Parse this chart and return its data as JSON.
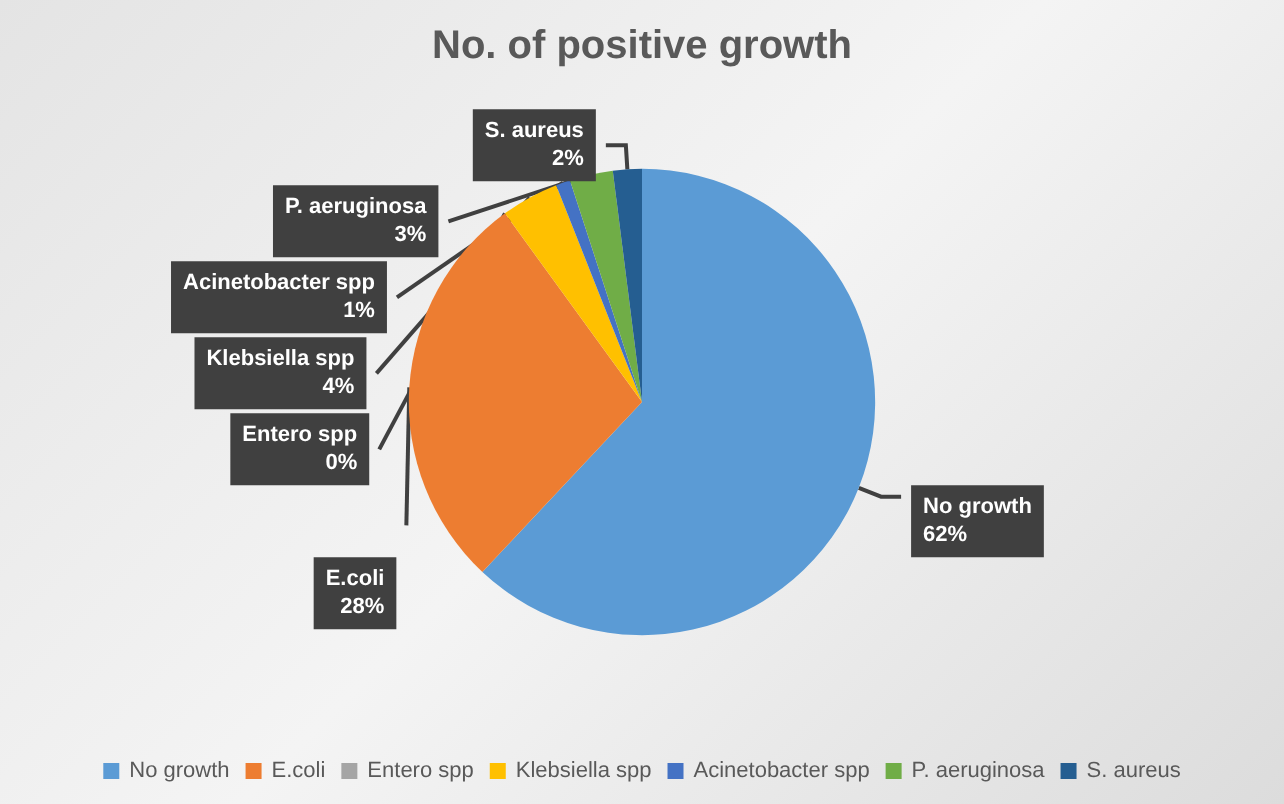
{
  "chart_data": {
    "type": "pie",
    "title": "No. of positive growth",
    "categories": [
      "No growth",
      "E.coli",
      "Entero spp",
      "Klebsiella spp",
      "Acinetobacter spp",
      "P. aeruginosa",
      "S. aureus"
    ],
    "values": [
      62,
      28,
      0,
      4,
      1,
      3,
      2
    ],
    "value_labels": [
      "62%",
      "28%",
      "0%",
      "4%",
      "1%",
      "3%",
      "2%"
    ],
    "colors": [
      "#5b9bd5",
      "#ed7d31",
      "#a5a5a5",
      "#ffc000",
      "#4472c4",
      "#70ad47",
      "#255e91"
    ],
    "legend": "bottom"
  }
}
